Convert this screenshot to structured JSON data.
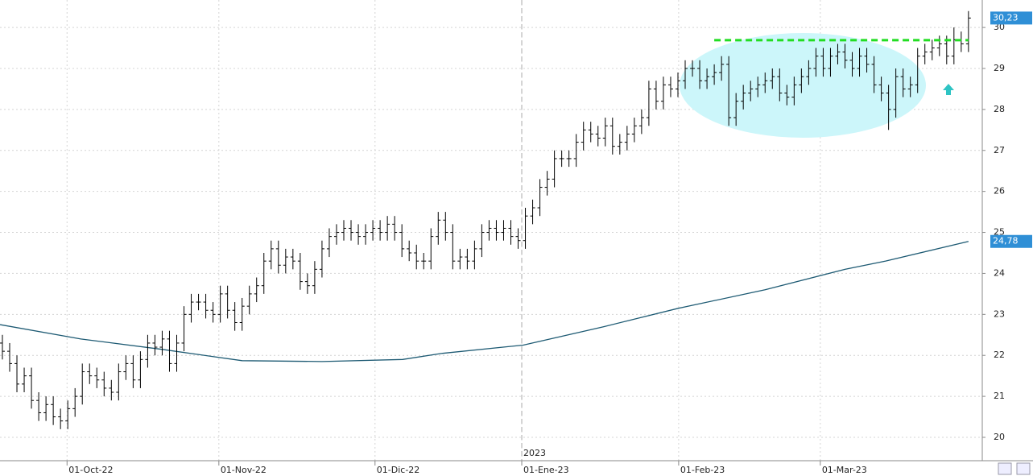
{
  "chart_data": {
    "type": "ohlc",
    "ylim": [
      19.43,
      30.67
    ],
    "yticks": [
      20,
      21,
      22,
      23,
      24,
      25,
      26,
      27,
      28,
      29,
      30
    ],
    "xlim": [
      -0.33,
      134.9
    ],
    "xticks": [
      {
        "value": 8.9,
        "label": "01-Oct-22"
      },
      {
        "value": 29.8,
        "label": "01-Nov-22"
      },
      {
        "value": 51.3,
        "label": "01-Dic-22"
      },
      {
        "value": 71.5,
        "label": "01-Ene-23"
      },
      {
        "value": 93.1,
        "label": "01-Feb-23"
      },
      {
        "value": 112.6,
        "label": "01-Mar-23"
      }
    ],
    "year_marker": {
      "value": 71.5,
      "label": "2023"
    },
    "grid": true,
    "color": "#000000",
    "open": [
      22.3,
      22.1,
      21.8,
      21.3,
      21.5,
      20.9,
      20.6,
      20.8,
      20.5,
      20.4,
      20.7,
      21.0,
      21.6,
      21.5,
      21.4,
      21.2,
      21.1,
      21.6,
      21.8,
      21.4,
      21.9,
      22.3,
      22.2,
      22.4,
      21.8,
      22.3,
      23.0,
      23.3,
      23.3,
      23.1,
      23.0,
      23.5,
      23.1,
      22.8,
      23.2,
      23.5,
      23.7,
      24.3,
      24.6,
      24.2,
      24.4,
      24.3,
      23.8,
      23.7,
      24.1,
      24.6,
      24.9,
      25.0,
      25.1,
      25.0,
      24.9,
      25.0,
      25.1,
      25.0,
      25.2,
      25.0,
      24.6,
      24.5,
      24.3,
      24.3,
      24.9,
      25.3,
      25.0,
      24.3,
      24.4,
      24.3,
      24.6,
      25.0,
      25.1,
      25.0,
      25.1,
      24.9,
      24.8,
      25.4,
      25.6,
      26.1,
      26.3,
      26.8,
      26.8,
      26.8,
      27.2,
      27.5,
      27.4,
      27.3,
      27.6,
      27.1,
      27.2,
      27.4,
      27.6,
      27.8,
      28.5,
      28.2,
      28.6,
      28.5,
      28.7,
      29.0,
      29.0,
      28.7,
      28.8,
      28.9,
      29.1,
      27.8,
      28.2,
      28.4,
      28.5,
      28.6,
      28.7,
      28.8,
      28.4,
      28.3,
      28.6,
      28.8,
      29.0,
      29.3,
      29.0,
      29.3,
      29.4,
      29.2,
      29.0,
      29.3,
      29.1,
      28.6,
      28.4,
      28.0,
      28.8,
      28.5,
      28.6,
      29.3,
      29.4,
      29.5,
      29.6,
      29.3,
      29.7,
      29.6
    ],
    "high": [
      22.5,
      22.3,
      22.0,
      21.7,
      21.7,
      21.1,
      21.0,
      21.0,
      20.7,
      20.9,
      21.2,
      21.8,
      21.8,
      21.7,
      21.6,
      21.4,
      21.8,
      22.0,
      22.0,
      22.1,
      22.5,
      22.5,
      22.6,
      22.6,
      22.5,
      23.2,
      23.5,
      23.5,
      23.5,
      23.3,
      23.7,
      23.7,
      23.3,
      23.4,
      23.7,
      23.9,
      24.5,
      24.8,
      24.8,
      24.6,
      24.6,
      24.5,
      24.0,
      24.3,
      24.8,
      25.1,
      25.2,
      25.3,
      25.3,
      25.2,
      25.2,
      25.3,
      25.3,
      25.4,
      25.4,
      25.2,
      24.8,
      24.7,
      24.5,
      25.1,
      25.5,
      25.5,
      25.2,
      24.6,
      24.6,
      24.8,
      25.2,
      25.3,
      25.3,
      25.3,
      25.3,
      25.1,
      25.6,
      25.8,
      26.3,
      26.5,
      27.0,
      27.0,
      27.0,
      27.4,
      27.7,
      27.7,
      27.6,
      27.8,
      27.8,
      27.4,
      27.6,
      27.8,
      28.0,
      28.7,
      28.7,
      28.8,
      28.8,
      28.9,
      29.2,
      29.2,
      29.2,
      29.0,
      29.1,
      29.3,
      29.3,
      28.4,
      28.6,
      28.7,
      28.8,
      28.9,
      29.0,
      29.0,
      28.6,
      28.8,
      29.0,
      29.2,
      29.5,
      29.5,
      29.5,
      29.6,
      29.6,
      29.4,
      29.5,
      29.5,
      29.3,
      28.8,
      28.6,
      29.0,
      29.0,
      28.8,
      29.5,
      29.6,
      29.7,
      29.8,
      29.8,
      30.0,
      29.9,
      30.4
    ],
    "low": [
      21.9,
      21.6,
      21.1,
      21.1,
      20.7,
      20.4,
      20.4,
      20.3,
      20.2,
      20.2,
      20.5,
      20.8,
      21.3,
      21.2,
      21.0,
      20.9,
      20.9,
      21.4,
      21.2,
      21.2,
      21.7,
      22.0,
      22.0,
      21.6,
      21.6,
      22.1,
      22.8,
      23.1,
      22.9,
      22.8,
      22.8,
      22.9,
      22.6,
      22.6,
      23.0,
      23.3,
      23.5,
      24.1,
      24.0,
      24.0,
      24.1,
      23.6,
      23.5,
      23.5,
      23.9,
      24.4,
      24.7,
      24.8,
      24.8,
      24.7,
      24.7,
      24.8,
      24.8,
      24.8,
      24.8,
      24.4,
      24.3,
      24.1,
      24.1,
      24.1,
      24.7,
      24.8,
      24.1,
      24.1,
      24.1,
      24.1,
      24.4,
      24.8,
      24.8,
      24.8,
      24.7,
      24.6,
      24.6,
      25.2,
      25.4,
      25.9,
      26.1,
      26.6,
      26.6,
      26.6,
      27.0,
      27.2,
      27.1,
      27.1,
      26.9,
      26.9,
      27.0,
      27.2,
      27.4,
      27.6,
      28.0,
      28.0,
      28.3,
      28.3,
      28.5,
      28.8,
      28.5,
      28.5,
      28.6,
      28.7,
      27.6,
      27.6,
      28.0,
      28.2,
      28.3,
      28.4,
      28.5,
      28.2,
      28.1,
      28.1,
      28.4,
      28.6,
      28.8,
      28.8,
      28.8,
      29.1,
      29.0,
      28.8,
      28.8,
      28.9,
      28.4,
      28.2,
      27.5,
      27.8,
      28.3,
      28.3,
      28.4,
      29.1,
      29.2,
      29.3,
      29.1,
      29.1,
      29.4,
      29.4
    ],
    "close": [
      22.1,
      21.8,
      21.3,
      21.5,
      20.9,
      20.6,
      20.8,
      20.5,
      20.4,
      20.7,
      21.0,
      21.6,
      21.5,
      21.4,
      21.2,
      21.1,
      21.6,
      21.8,
      21.4,
      21.9,
      22.3,
      22.2,
      22.4,
      21.8,
      22.3,
      23.0,
      23.3,
      23.3,
      23.1,
      23.0,
      23.5,
      23.1,
      22.8,
      23.2,
      23.5,
      23.7,
      24.3,
      24.6,
      24.2,
      24.4,
      24.3,
      23.8,
      23.7,
      24.1,
      24.6,
      24.9,
      25.0,
      25.1,
      25.0,
      24.9,
      25.0,
      25.1,
      25.0,
      25.2,
      25.0,
      24.6,
      24.5,
      24.3,
      24.3,
      24.9,
      25.3,
      25.0,
      24.3,
      24.4,
      24.3,
      24.6,
      25.0,
      25.1,
      25.0,
      25.1,
      24.9,
      24.8,
      25.4,
      25.6,
      26.1,
      26.3,
      26.8,
      26.8,
      26.8,
      27.2,
      27.5,
      27.4,
      27.3,
      27.6,
      27.1,
      27.2,
      27.4,
      27.6,
      27.8,
      28.5,
      28.2,
      28.6,
      28.5,
      28.7,
      29.0,
      29.0,
      28.7,
      28.8,
      28.9,
      29.1,
      27.8,
      28.2,
      28.4,
      28.5,
      28.6,
      28.7,
      28.8,
      28.4,
      28.3,
      28.6,
      28.8,
      29.0,
      29.3,
      29.0,
      29.3,
      29.4,
      29.2,
      29.0,
      29.3,
      29.1,
      28.6,
      28.4,
      28.0,
      28.8,
      28.5,
      28.6,
      29.3,
      29.4,
      29.5,
      29.6,
      29.3,
      29.7,
      29.6,
      30.23
    ],
    "last_price": {
      "value": 30.23,
      "label": "30,23"
    },
    "moving_average": {
      "color": "#1d5a73",
      "x": [
        -0.33,
        10.8,
        21.8,
        33,
        44,
        55.1,
        60.6,
        71.7,
        82.8,
        93.1,
        105,
        116,
        121.6,
        133
      ],
      "values": [
        22.75,
        22.4,
        22.15,
        21.87,
        21.85,
        21.9,
        22.05,
        22.25,
        22.7,
        23.15,
        23.6,
        24.1,
        24.3,
        24.78
      ],
      "last": {
        "value": 24.78,
        "label": "24,78"
      }
    },
    "resistance": {
      "value": 29.69,
      "from": 98,
      "to": 133,
      "color": "#22dd22"
    }
  }
}
